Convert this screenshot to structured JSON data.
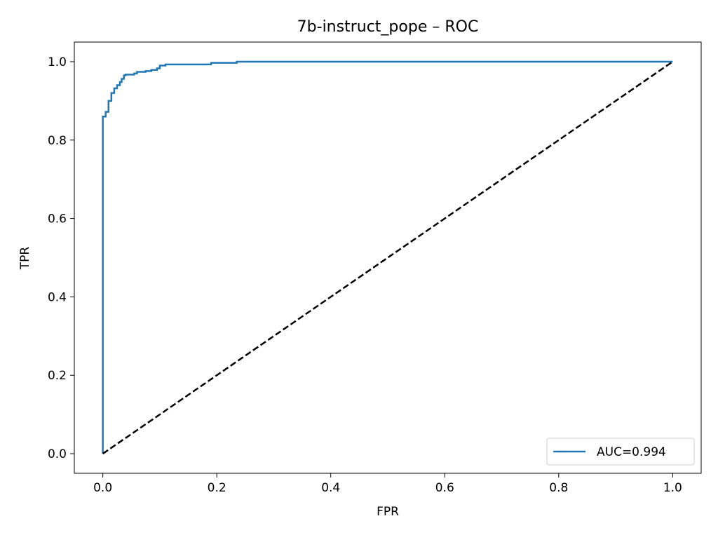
{
  "chart_data": {
    "type": "line",
    "title": "7b-instruct_pope – ROC",
    "xlabel": "FPR",
    "ylabel": "TPR",
    "xlim": [
      -0.05,
      1.05
    ],
    "ylim": [
      -0.05,
      1.05
    ],
    "xticks": [
      0.0,
      0.2,
      0.4,
      0.6,
      0.8,
      1.0
    ],
    "yticks": [
      0.0,
      0.2,
      0.4,
      0.6,
      0.8,
      1.0
    ],
    "xtick_labels": [
      "0.0",
      "0.2",
      "0.4",
      "0.6",
      "0.8",
      "1.0"
    ],
    "ytick_labels": [
      "0.0",
      "0.2",
      "0.4",
      "0.6",
      "0.8",
      "1.0"
    ],
    "grid": false,
    "legend_position": "lower-right",
    "series": [
      {
        "name": "AUC=0.994",
        "color": "#1f77b4",
        "linestyle": "solid",
        "x": [
          0.0,
          0.0,
          0.005,
          0.005,
          0.01,
          0.01,
          0.015,
          0.015,
          0.02,
          0.02,
          0.025,
          0.025,
          0.03,
          0.03,
          0.033,
          0.033,
          0.037,
          0.037,
          0.04,
          0.04,
          0.055,
          0.055,
          0.06,
          0.06,
          0.075,
          0.075,
          0.085,
          0.085,
          0.095,
          0.095,
          0.1,
          0.1,
          0.11,
          0.11,
          0.19,
          0.19,
          0.235,
          0.235,
          1.0
        ],
        "y": [
          0.0,
          0.86,
          0.86,
          0.872,
          0.872,
          0.9,
          0.9,
          0.92,
          0.92,
          0.932,
          0.932,
          0.94,
          0.94,
          0.948,
          0.948,
          0.956,
          0.956,
          0.965,
          0.965,
          0.967,
          0.967,
          0.97,
          0.97,
          0.974,
          0.974,
          0.976,
          0.976,
          0.979,
          0.979,
          0.983,
          0.983,
          0.99,
          0.99,
          0.993,
          0.993,
          0.997,
          0.997,
          1.0,
          1.0
        ]
      },
      {
        "name": "",
        "color": "#000000",
        "linestyle": "dashed",
        "x": [
          0.0,
          1.0
        ],
        "y": [
          0.0,
          1.0
        ]
      }
    ],
    "legend": [
      {
        "label": "AUC=0.994",
        "color": "#1f77b4"
      }
    ]
  }
}
